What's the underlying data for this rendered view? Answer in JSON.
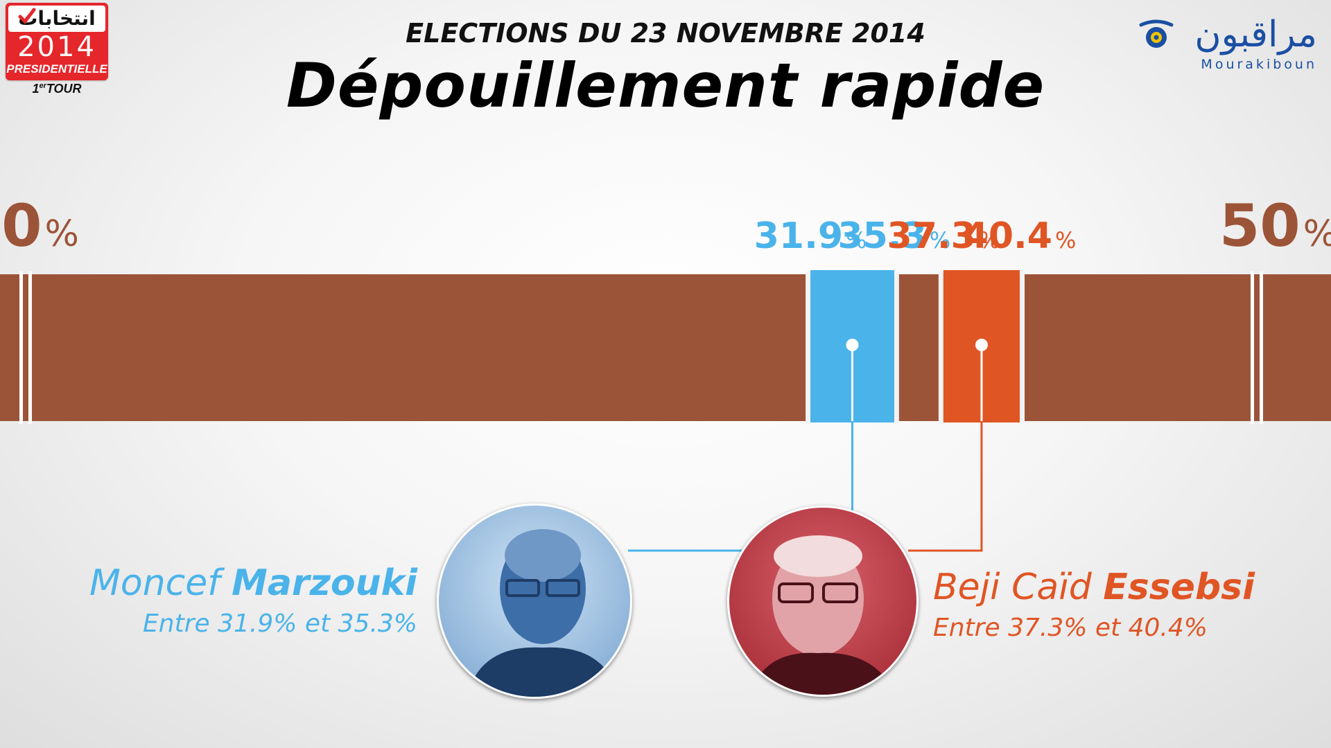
{
  "header": {
    "subtitle": "ELECTIONS DU 23 NOVEMBRE 2014",
    "title": "Dépouillement rapide"
  },
  "badge": {
    "arabic": "انتخابات",
    "year": "2014",
    "type": "PRESIDENTIELLE",
    "round_num": "1",
    "round_sup": "er",
    "round_word": "TOUR",
    "color": "#e5262b"
  },
  "logo": {
    "arabic": "مراقبون",
    "name": "Mourakiboun",
    "color": "#1a4fa3",
    "eye_color": "#f2c300"
  },
  "chart_data": {
    "type": "bar",
    "orientation": "horizontal",
    "xlim": [
      0,
      50
    ],
    "axis_ticks": [
      {
        "value": 0,
        "label": "0"
      },
      {
        "value": 50,
        "label": "50"
      }
    ],
    "unit": "%",
    "ranges": [
      {
        "candidate": "Moncef Marzouki",
        "low": 31.9,
        "high": 35.3,
        "color": "#4ab3ea"
      },
      {
        "candidate": "Beji Caïd Essebsi",
        "low": 37.3,
        "high": 40.4,
        "color": "#e05524"
      }
    ],
    "bar_color": "#9c5438",
    "axis_label_color": "#9c5438"
  },
  "candidates": [
    {
      "first": "Moncef",
      "last": "Marzouki",
      "range_text": "Entre 31.9% et 35.3%",
      "color": "#4ab3ea",
      "photo": "portrait-photo-blue"
    },
    {
      "first": "Beji Caïd",
      "last": "Essebsi",
      "range_text": "Entre 37.3% et 40.4%",
      "color": "#e05524",
      "photo": "portrait-photo-red"
    }
  ]
}
